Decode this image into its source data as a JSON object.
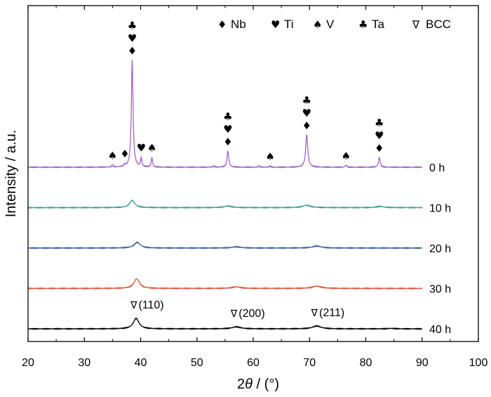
{
  "chart_data": {
    "type": "line",
    "xlabel_prefix": "2",
    "xlabel_theta": "θ",
    "xlabel_unit": " / (°)",
    "ylabel": "Intensity / a.u.",
    "xlim": [
      20,
      100
    ],
    "xticks": [
      20,
      30,
      40,
      50,
      60,
      70,
      80,
      90,
      100
    ],
    "yticks_shown": false,
    "legend": {
      "placement": "top-right",
      "entries": [
        {
          "symbol": "♦",
          "label": "Nb"
        },
        {
          "symbol": "♥",
          "label": "Ti"
        },
        {
          "symbol": "♠",
          "label": "V"
        },
        {
          "symbol": "♣",
          "label": "Ta"
        },
        {
          "symbol": "∇",
          "label": "BCC"
        }
      ]
    },
    "x_range_plotted": [
      20,
      90
    ],
    "series": [
      {
        "name": "0 h",
        "color": "#a463c9",
        "offset": 4,
        "peaks": [
          {
            "x": 35.0,
            "h": 0.05,
            "w": 0.15
          },
          {
            "x": 37.2,
            "h": 0.05,
            "w": 0.15
          },
          {
            "x": 38.5,
            "h": 2.65,
            "w": 0.18
          },
          {
            "x": 40.1,
            "h": 0.22,
            "w": 0.13
          },
          {
            "x": 42.0,
            "h": 0.24,
            "w": 0.13
          },
          {
            "x": 53.0,
            "h": 0.03,
            "w": 0.15
          },
          {
            "x": 55.5,
            "h": 0.4,
            "w": 0.18
          },
          {
            "x": 61.0,
            "h": 0.03,
            "w": 0.15
          },
          {
            "x": 63.0,
            "h": 0.03,
            "w": 0.15
          },
          {
            "x": 69.5,
            "h": 0.8,
            "w": 0.22
          },
          {
            "x": 76.5,
            "h": 0.05,
            "w": 0.15
          },
          {
            "x": 82.4,
            "h": 0.24,
            "w": 0.18
          }
        ]
      },
      {
        "name": "10 h",
        "color": "#3f9e92",
        "offset": 3,
        "peaks": [
          {
            "x": 38.5,
            "h": 0.18,
            "w": 0.55
          },
          {
            "x": 55.5,
            "h": 0.04,
            "w": 0.8
          },
          {
            "x": 69.5,
            "h": 0.06,
            "w": 0.8
          },
          {
            "x": 82.5,
            "h": 0.03,
            "w": 0.8
          }
        ]
      },
      {
        "name": "20 h",
        "color": "#3b5ea8",
        "offset": 2,
        "peaks": [
          {
            "x": 39.4,
            "h": 0.14,
            "w": 0.65
          },
          {
            "x": 57.0,
            "h": 0.03,
            "w": 0.9
          },
          {
            "x": 71.3,
            "h": 0.05,
            "w": 0.9
          }
        ]
      },
      {
        "name": "30 h",
        "color": "#e0523a",
        "offset": 1,
        "peaks": [
          {
            "x": 39.3,
            "h": 0.24,
            "w": 0.6
          },
          {
            "x": 57.0,
            "h": 0.04,
            "w": 0.9
          },
          {
            "x": 71.3,
            "h": 0.06,
            "w": 0.9
          }
        ]
      },
      {
        "name": "40 h",
        "color": "#000000",
        "offset": 0,
        "peaks": [
          {
            "x": 39.2,
            "h": 0.26,
            "w": 0.6
          },
          {
            "x": 57.0,
            "h": 0.05,
            "w": 0.9
          },
          {
            "x": 71.3,
            "h": 0.07,
            "w": 0.9
          },
          {
            "x": 84.5,
            "h": 0.01,
            "w": 0.8
          }
        ]
      }
    ],
    "phase_markers": [
      {
        "x": 35.0,
        "stack": [
          "♠"
        ]
      },
      {
        "x": 37.2,
        "stack": [
          "♦"
        ]
      },
      {
        "x": 38.5,
        "stack": [
          "♣",
          "♥",
          "♦"
        ],
        "above_peak": true
      },
      {
        "x": 40.1,
        "stack": [
          "♥"
        ]
      },
      {
        "x": 42.0,
        "stack": [
          "♠"
        ]
      },
      {
        "x": 55.5,
        "stack": [
          "♣",
          "♥",
          "♦"
        ]
      },
      {
        "x": 63.0,
        "stack": [
          "♠"
        ]
      },
      {
        "x": 69.5,
        "stack": [
          "♣",
          "♥",
          "♦"
        ]
      },
      {
        "x": 76.5,
        "stack": [
          "♠"
        ]
      },
      {
        "x": 82.4,
        "stack": [
          "♣",
          "♥",
          "♦"
        ]
      }
    ],
    "peak_annotations": [
      {
        "x": 39.2,
        "symbol": "∇",
        "text": "(110)"
      },
      {
        "x": 57.0,
        "symbol": "∇",
        "text": "(200)"
      },
      {
        "x": 71.3,
        "symbol": "∇",
        "text": "(211)"
      }
    ]
  }
}
